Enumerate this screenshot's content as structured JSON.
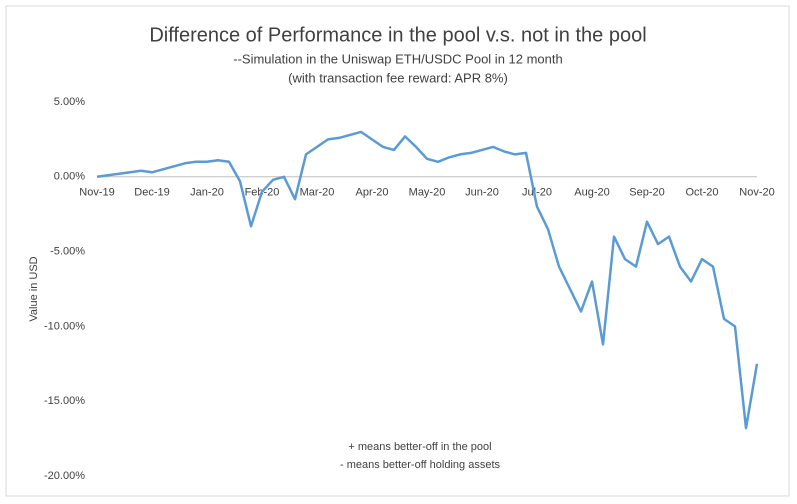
{
  "chart_data": {
    "type": "line",
    "title": "Difference of Performance in the pool v.s. not in the pool",
    "subtitle": [
      "--Simulation in the Uniswap ETH/USDC Pool in 12 month",
      "(with transaction fee reward: APR 8%)"
    ],
    "y_label": "Value in USD",
    "annotations": [
      "+ means better-off in the pool",
      "- means better-off holding assets"
    ],
    "categories": [
      "Nov-19",
      null,
      null,
      null,
      null,
      "Dec-19",
      null,
      null,
      null,
      null,
      "Jan-20",
      null,
      null,
      null,
      null,
      "Feb-20",
      null,
      null,
      null,
      null,
      "Mar-20",
      null,
      null,
      null,
      null,
      "Apr-20",
      null,
      null,
      null,
      null,
      "May-20",
      null,
      null,
      null,
      null,
      "Jun-20",
      null,
      null,
      null,
      null,
      "Jul-20",
      null,
      null,
      null,
      null,
      "Aug-20",
      null,
      null,
      null,
      null,
      "Sep-20",
      null,
      null,
      null,
      null,
      "Oct-20",
      null,
      null,
      null,
      null,
      "Nov-20"
    ],
    "series": [
      {
        "name": "Difference",
        "color": "#5b9bd5",
        "values": [
          0,
          0.1,
          0.2,
          0.3,
          0.4,
          0.3,
          0.5,
          0.7,
          0.9,
          1.0,
          1.0,
          1.1,
          1.0,
          -0.3,
          -3.3,
          -1.0,
          -0.2,
          0.0,
          -1.5,
          1.5,
          2.0,
          2.5,
          2.6,
          2.8,
          3.0,
          2.5,
          2.0,
          1.8,
          2.7,
          2.0,
          1.2,
          1.0,
          1.3,
          1.5,
          1.6,
          1.8,
          2.0,
          1.7,
          1.5,
          1.6,
          -2.0,
          -3.5,
          -6.0,
          -7.5,
          -9.0,
          -7.0,
          -11.2,
          -4.0,
          -5.5,
          -6.0,
          -3.0,
          -4.5,
          -4.0,
          -6.0,
          -7.0,
          -5.5,
          -6.0,
          -9.5,
          -10.0,
          -16.8,
          -12.5
        ]
      }
    ],
    "ylim": [
      -20,
      5
    ],
    "yticks": [
      {
        "value": -20,
        "label": "-20.00%"
      },
      {
        "value": -15,
        "label": "-15.00%"
      },
      {
        "value": -10,
        "label": "-10.00%"
      },
      {
        "value": -5,
        "label": "-5.00%"
      },
      {
        "value": 0,
        "label": "0.00%"
      },
      {
        "value": 5,
        "label": "5.00%"
      }
    ],
    "zero_line": true
  }
}
